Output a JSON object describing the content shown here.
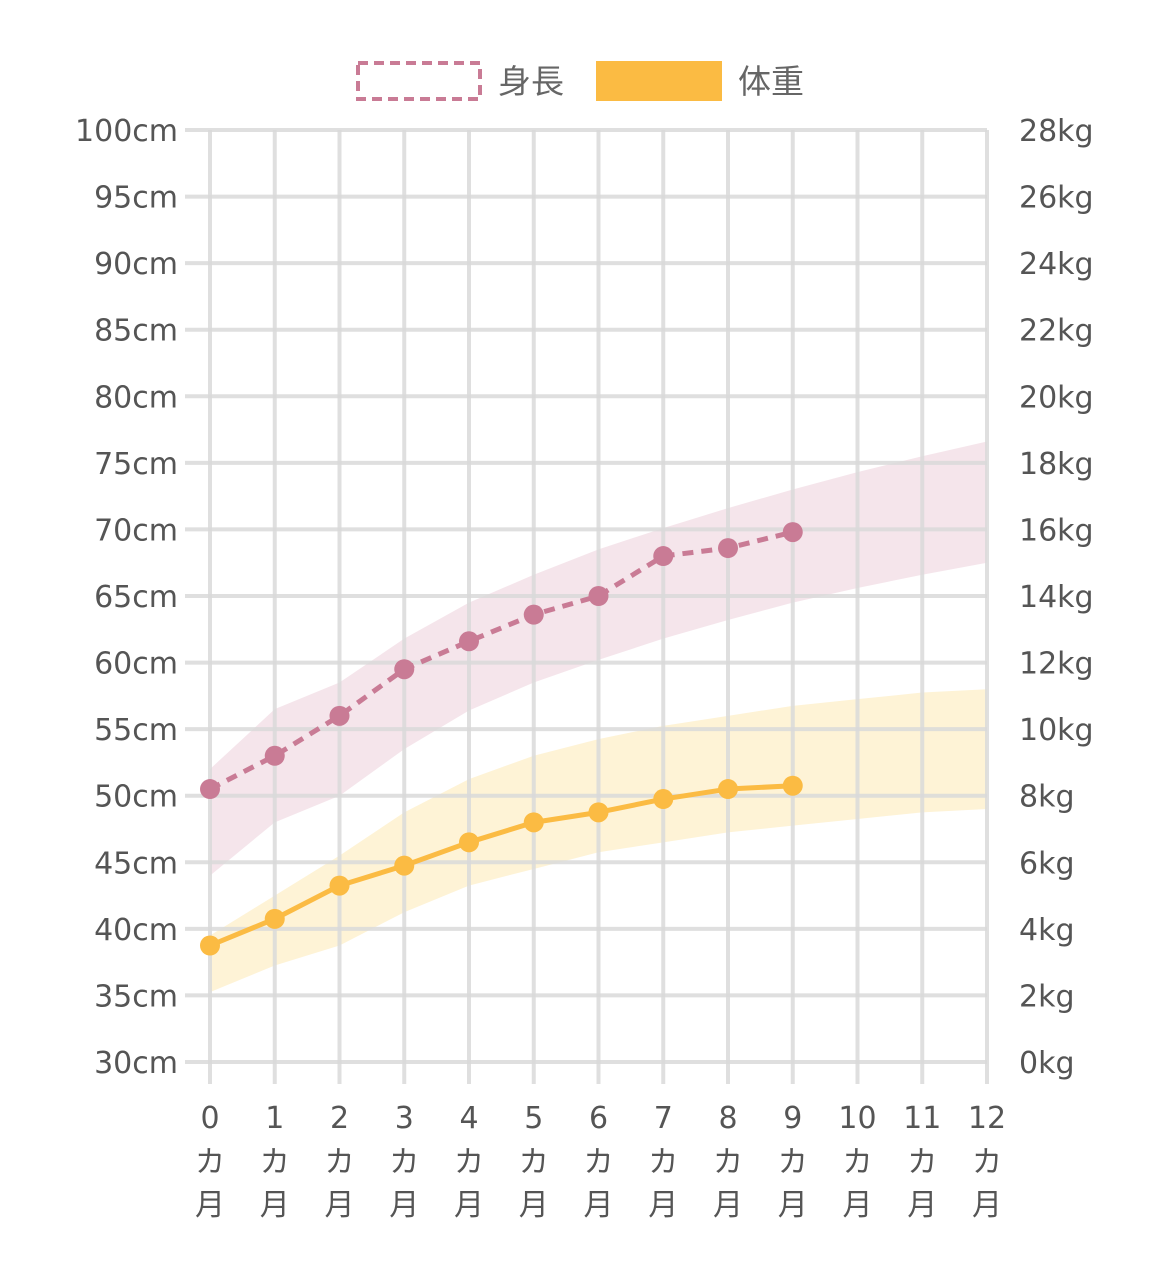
{
  "chart_data": {
    "type": "line",
    "categories": [
      "0",
      "1",
      "2",
      "3",
      "4",
      "5",
      "6",
      "7",
      "8",
      "9",
      "10",
      "11",
      "12"
    ],
    "category_unit_lines": [
      "カ",
      "月"
    ],
    "left_axis": {
      "ylim": [
        30,
        100
      ],
      "ticks": [
        "30cm",
        "35cm",
        "40cm",
        "45cm",
        "50cm",
        "55cm",
        "60cm",
        "65cm",
        "70cm",
        "75cm",
        "80cm",
        "85cm",
        "90cm",
        "95cm",
        "100cm"
      ]
    },
    "right_axis": {
      "ylim": [
        0,
        28
      ],
      "ticks": [
        "0kg",
        "2kg",
        "4kg",
        "6kg",
        "8kg",
        "10kg",
        "12kg",
        "14kg",
        "16kg",
        "18kg",
        "20kg",
        "22kg",
        "24kg",
        "26kg",
        "28kg"
      ]
    },
    "grid": true,
    "legend_position": "top-center",
    "series": [
      {
        "name": "身長",
        "axis": "left",
        "line_style": "dashed",
        "color": "#c97b95",
        "x": [
          0,
          1,
          2,
          3,
          4,
          5,
          6,
          7,
          8,
          9
        ],
        "values": [
          50.5,
          53.0,
          56.0,
          59.5,
          61.6,
          63.6,
          65.0,
          68.0,
          68.6,
          69.8
        ]
      },
      {
        "name": "体重",
        "axis": "right",
        "line_style": "solid",
        "color": "#fbbb43",
        "x": [
          0,
          1,
          2,
          3,
          4,
          5,
          6,
          7,
          8,
          9
        ],
        "values": [
          3.5,
          4.3,
          5.3,
          5.9,
          6.6,
          7.2,
          7.5,
          7.9,
          8.2,
          8.3
        ]
      }
    ],
    "reference_bands": [
      {
        "series": "身長",
        "axis": "left",
        "color": "#f2dce4",
        "x": [
          0,
          1,
          2,
          3,
          4,
          5,
          6,
          7,
          8,
          9,
          10,
          11,
          12
        ],
        "lower": [
          44.0,
          48.0,
          50.0,
          53.5,
          56.4,
          58.5,
          60.2,
          61.8,
          63.2,
          64.5,
          65.6,
          66.6,
          67.5
        ],
        "upper": [
          52.0,
          56.5,
          58.5,
          61.8,
          64.5,
          66.6,
          68.5,
          70.1,
          71.6,
          73.0,
          74.3,
          75.5,
          76.6
        ]
      },
      {
        "series": "体重",
        "axis": "right",
        "color": "#fdefc8",
        "x": [
          0,
          1,
          2,
          3,
          4,
          5,
          6,
          7,
          8,
          9,
          10,
          11,
          12
        ],
        "lower": [
          2.1,
          2.9,
          3.5,
          4.5,
          5.3,
          5.8,
          6.3,
          6.6,
          6.9,
          7.1,
          7.3,
          7.5,
          7.6
        ],
        "upper": [
          3.8,
          5.0,
          6.2,
          7.5,
          8.5,
          9.2,
          9.7,
          10.1,
          10.4,
          10.7,
          10.9,
          11.1,
          11.2
        ]
      }
    ]
  }
}
